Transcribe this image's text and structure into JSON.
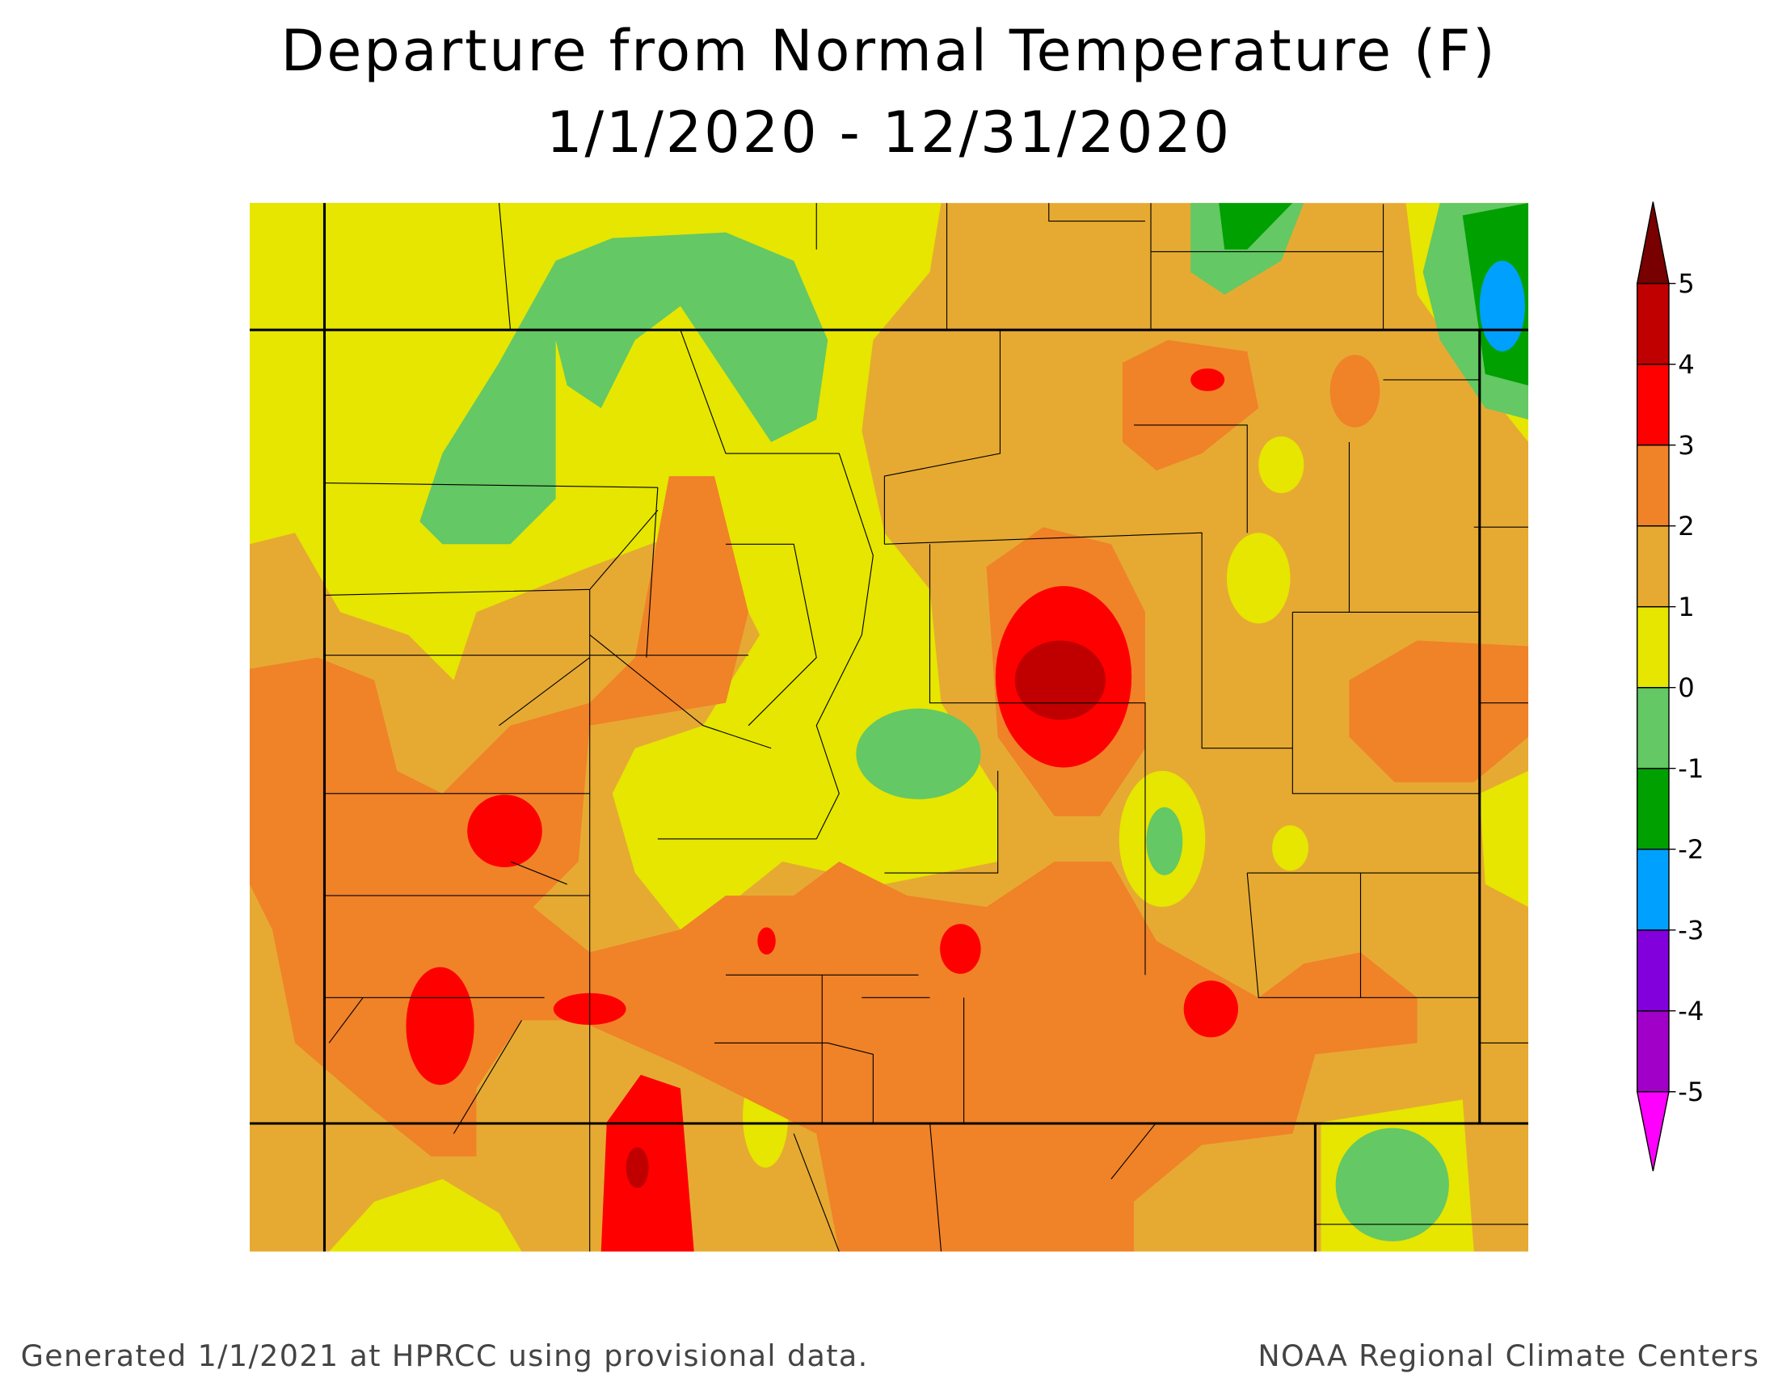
{
  "header": {
    "title": "Departure from Normal Temperature (F)",
    "subtitle": "1/1/2020 - 12/31/2020"
  },
  "colorbar": {
    "ticks": [
      5,
      4,
      3,
      2,
      1,
      0,
      -1,
      -2,
      -3,
      -4,
      -5
    ],
    "colors": [
      "#780000",
      "#c00000",
      "#ff0000",
      "#f08228",
      "#e6aa32",
      "#e6e600",
      "#64c864",
      "#00a000",
      "#00a0ff",
      "#8200dc",
      "#a000c8",
      "#ff00ff"
    ]
  },
  "footer": {
    "left": "Generated 1/1/2021 at HPRCC using provisional data.",
    "right": "NOAA Regional Climate Centers"
  }
}
